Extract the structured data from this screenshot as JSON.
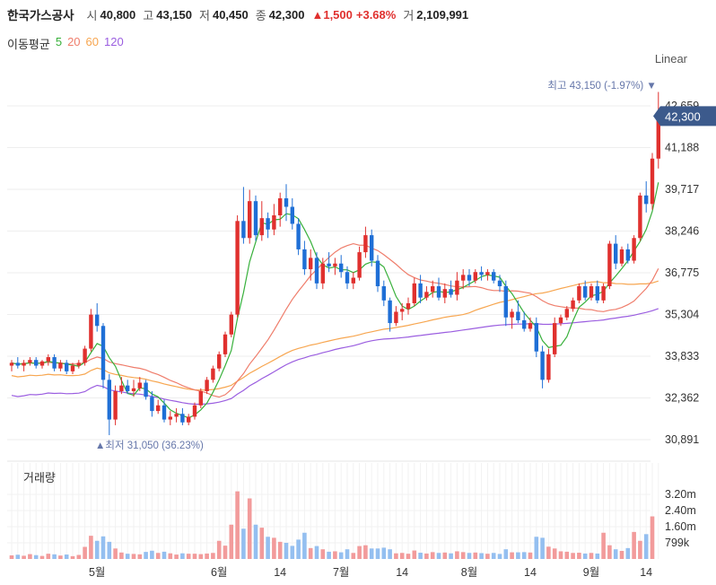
{
  "header": {
    "name": "한국가스공사",
    "open_label": "시",
    "open": "40,800",
    "high_label": "고",
    "high": "43,150",
    "low_label": "저",
    "low": "40,450",
    "close_label": "종",
    "close": "42,300",
    "change": "▲1,500",
    "change_pct": "+3.68%",
    "volume_label": "거",
    "volume": "2,109,991"
  },
  "ma_legend": {
    "title": "이동평균",
    "items": [
      {
        "label": "5",
        "color": "#38b03b"
      },
      {
        "label": "20",
        "color": "#ef7d6b"
      },
      {
        "label": "60",
        "color": "#f7a650"
      },
      {
        "label": "120",
        "color": "#9b5ee0"
      }
    ]
  },
  "scale_label": "Linear",
  "volume_title": "거래량",
  "annotations": {
    "max": "최고 43,150 (-1.97%)",
    "min": "▲최저 31,050 (36.23%)",
    "current": "42,300"
  },
  "colors": {
    "up": "#e0302e",
    "down": "#1f6fd6",
    "vol_up": "#f29b9b",
    "vol_down": "#94bff0",
    "grid": "#eeeeee"
  },
  "chart_data": {
    "type": "candlestick",
    "y_ticks": [
      "42,659",
      "41,188",
      "39,717",
      "38,246",
      "36,775",
      "35,304",
      "33,833",
      "32,362",
      "30,891"
    ],
    "y_tick_values": [
      42659,
      41188,
      39717,
      38246,
      36775,
      35304,
      33833,
      32362,
      30891
    ],
    "volume_ticks": [
      "3.20m",
      "2.40m",
      "1.60m",
      "799k"
    ],
    "volume_tick_values": [
      3200000,
      2400000,
      1600000,
      799000
    ],
    "x_labels": [
      {
        "label": "5월",
        "index": 14
      },
      {
        "label": "6월",
        "index": 34
      },
      {
        "label": "14",
        "index": 44
      },
      {
        "label": "7월",
        "index": 54
      },
      {
        "label": "14",
        "index": 64
      },
      {
        "label": "8월",
        "index": 75
      },
      {
        "label": "14",
        "index": 85
      },
      {
        "label": "9월",
        "index": 95
      },
      {
        "label": "14",
        "index": 104
      }
    ],
    "candles": [
      [
        33500,
        33700,
        33300,
        33600
      ],
      [
        33600,
        33800,
        33400,
        33500
      ],
      [
        33500,
        33700,
        33300,
        33600
      ],
      [
        33600,
        33800,
        33500,
        33700
      ],
      [
        33700,
        33800,
        33400,
        33500
      ],
      [
        33500,
        33700,
        33400,
        33650
      ],
      [
        33650,
        33900,
        33500,
        33800
      ],
      [
        33800,
        33900,
        33300,
        33400
      ],
      [
        33400,
        33700,
        33300,
        33600
      ],
      [
        33600,
        33700,
        33200,
        33300
      ],
      [
        33300,
        33600,
        33200,
        33500
      ],
      [
        33500,
        33700,
        33400,
        33600
      ],
      [
        33600,
        34200,
        33500,
        34100
      ],
      [
        34100,
        35500,
        34000,
        35300
      ],
      [
        35300,
        35700,
        34700,
        34900
      ],
      [
        34900,
        35000,
        32700,
        33000
      ],
      [
        33000,
        33200,
        31050,
        31600
      ],
      [
        31600,
        32800,
        31400,
        32600
      ],
      [
        32600,
        33100,
        32500,
        32800
      ],
      [
        32800,
        33000,
        32500,
        32600
      ],
      [
        32600,
        33000,
        32400,
        32700
      ],
      [
        32700,
        33100,
        32600,
        32900
      ],
      [
        32900,
        33000,
        32300,
        32400
      ],
      [
        32400,
        32600,
        31700,
        31900
      ],
      [
        31900,
        32300,
        31800,
        32100
      ],
      [
        32100,
        32300,
        31500,
        31600
      ],
      [
        31600,
        31900,
        31400,
        31700
      ],
      [
        31700,
        32000,
        31500,
        31800
      ],
      [
        31800,
        32000,
        31400,
        31500
      ],
      [
        31500,
        31800,
        31400,
        31700
      ],
      [
        31700,
        32200,
        31600,
        32100
      ],
      [
        32100,
        32700,
        32000,
        32600
      ],
      [
        32600,
        33100,
        32500,
        33000
      ],
      [
        33000,
        33500,
        32900,
        33400
      ],
      [
        33400,
        34000,
        33300,
        33900
      ],
      [
        33900,
        34700,
        33800,
        34600
      ],
      [
        34600,
        35400,
        34500,
        35300
      ],
      [
        35300,
        38800,
        35200,
        38600
      ],
      [
        38600,
        39800,
        37800,
        38000
      ],
      [
        38000,
        39700,
        37800,
        39300
      ],
      [
        39300,
        39500,
        37900,
        38100
      ],
      [
        38100,
        39300,
        37900,
        38700
      ],
      [
        38700,
        38900,
        38000,
        38300
      ],
      [
        38300,
        39200,
        38100,
        38800
      ],
      [
        38800,
        39600,
        38400,
        39400
      ],
      [
        39400,
        39900,
        38600,
        39100
      ],
      [
        39100,
        39400,
        38300,
        38500
      ],
      [
        38500,
        38700,
        37400,
        37600
      ],
      [
        37600,
        37900,
        36700,
        36900
      ],
      [
        36900,
        37600,
        36500,
        37300
      ],
      [
        37300,
        37500,
        36200,
        36400
      ],
      [
        36400,
        37300,
        36200,
        37100
      ],
      [
        37100,
        37500,
        36800,
        37000
      ],
      [
        37000,
        37300,
        36700,
        37100
      ],
      [
        37100,
        37400,
        36600,
        36800
      ],
      [
        36800,
        37000,
        36200,
        36400
      ],
      [
        36400,
        36800,
        36200,
        36600
      ],
      [
        36600,
        37700,
        36500,
        37500
      ],
      [
        37500,
        38400,
        37300,
        38100
      ],
      [
        38100,
        38300,
        37000,
        37200
      ],
      [
        37200,
        37400,
        36100,
        36300
      ],
      [
        36300,
        36500,
        35600,
        35800
      ],
      [
        35800,
        35900,
        34700,
        35000
      ],
      [
        35000,
        35600,
        34900,
        35400
      ],
      [
        35400,
        35700,
        35100,
        35500
      ],
      [
        35500,
        35900,
        35300,
        35700
      ],
      [
        35700,
        36600,
        35600,
        36400
      ],
      [
        36400,
        36700,
        35700,
        35900
      ],
      [
        35900,
        36300,
        35800,
        36100
      ],
      [
        36100,
        36500,
        35900,
        36300
      ],
      [
        36300,
        36600,
        35800,
        35900
      ],
      [
        35900,
        36400,
        35700,
        36200
      ],
      [
        36200,
        36500,
        35900,
        36000
      ],
      [
        36000,
        36800,
        35800,
        36500
      ],
      [
        36500,
        36900,
        36200,
        36700
      ],
      [
        36700,
        36900,
        36300,
        36500
      ],
      [
        36500,
        36900,
        36400,
        36800
      ],
      [
        36800,
        37000,
        36500,
        36700
      ],
      [
        36700,
        36900,
        36500,
        36800
      ],
      [
        36800,
        36900,
        36400,
        36500
      ],
      [
        36500,
        36700,
        36100,
        36300
      ],
      [
        36300,
        36500,
        34900,
        35200
      ],
      [
        35200,
        35500,
        34800,
        35400
      ],
      [
        35400,
        35800,
        35000,
        35100
      ],
      [
        35100,
        35400,
        34700,
        34800
      ],
      [
        34800,
        35200,
        34700,
        35000
      ],
      [
        35000,
        35200,
        33800,
        34000
      ],
      [
        34000,
        34200,
        32700,
        33000
      ],
      [
        33000,
        34100,
        32900,
        33900
      ],
      [
        33900,
        35200,
        33800,
        35000
      ],
      [
        35000,
        35300,
        34900,
        35200
      ],
      [
        35200,
        35600,
        35100,
        35500
      ],
      [
        35500,
        35900,
        35400,
        35800
      ],
      [
        35800,
        36400,
        35700,
        36300
      ],
      [
        36300,
        36500,
        35800,
        35900
      ],
      [
        35900,
        36400,
        35800,
        36300
      ],
      [
        36300,
        36500,
        35700,
        35800
      ],
      [
        35800,
        36400,
        35700,
        36300
      ],
      [
        36300,
        37900,
        36200,
        37800
      ],
      [
        37800,
        38100,
        36900,
        37100
      ],
      [
        37100,
        37700,
        37000,
        37600
      ],
      [
        37600,
        37800,
        37100,
        37200
      ],
      [
        37200,
        38100,
        37100,
        38000
      ],
      [
        38000,
        39600,
        37900,
        39500
      ],
      [
        39500,
        40000,
        38900,
        39200
      ],
      [
        39200,
        41000,
        39000,
        40800
      ],
      [
        40800,
        43150,
        40450,
        42300
      ]
    ],
    "volumes": [
      180000,
      210000,
      160000,
      240000,
      190000,
      150000,
      260000,
      230000,
      170000,
      220000,
      140000,
      200000,
      600000,
      1150000,
      900000,
      1120000,
      850000,
      520000,
      320000,
      260000,
      250000,
      230000,
      350000,
      410000,
      300000,
      360000,
      280000,
      220000,
      280000,
      260000,
      260000,
      240000,
      270000,
      300000,
      900000,
      660000,
      1700000,
      3350000,
      1500000,
      3000000,
      1700000,
      1550000,
      1100000,
      1050000,
      850000,
      800000,
      650000,
      960000,
      1300000,
      540000,
      640000,
      480000,
      360000,
      380000,
      330000,
      480000,
      300000,
      640000,
      680000,
      520000,
      520000,
      560000,
      480000,
      280000,
      300000,
      260000,
      420000,
      310000,
      270000,
      340000,
      300000,
      320000,
      280000,
      380000,
      340000,
      300000,
      320000,
      290000,
      260000,
      300000,
      250000,
      480000,
      330000,
      330000,
      340000,
      320000,
      1100000,
      1050000,
      610000,
      520000,
      380000,
      360000,
      300000,
      310000,
      270000,
      300000,
      270000,
      1300000,
      680000,
      480000,
      400000,
      540000,
      1340000,
      900000,
      1230000,
      2109991
    ]
  }
}
